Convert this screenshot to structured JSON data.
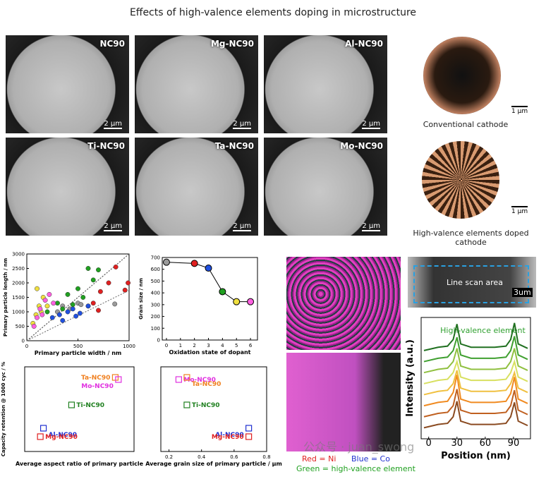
{
  "title": "Effects of high-valence elements doping in microstructure",
  "sem": [
    {
      "label": "NC90",
      "scale": "2 μm"
    },
    {
      "label": "Mg-NC90",
      "scale": "2 μm"
    },
    {
      "label": "Al-NC90",
      "scale": "2 μm"
    },
    {
      "label": "Ti-NC90",
      "scale": "2 μm"
    },
    {
      "label": "Ta-NC90",
      "scale": "2 μm"
    },
    {
      "label": "Mo-NC90",
      "scale": "2 μm"
    }
  ],
  "cathodes": [
    {
      "caption": "Conventional cathode",
      "scale": "1 μm"
    },
    {
      "caption": "High-valence elements doped cathode",
      "scale": "1 μm"
    }
  ],
  "eds": {
    "red": "Red = Ni",
    "blue": "Blue = Co",
    "green": "Green = high-valence element"
  },
  "line_scan": {
    "label": "Line scan area",
    "scale": "3um"
  },
  "watermark": "公众号 · juan_swong",
  "chart_data": [
    {
      "type": "scatter",
      "x_label": "Primary particle width / nm",
      "y_label": "Primary particle length / nm",
      "xlim": [
        0,
        1000
      ],
      "ylim": [
        0,
        3000
      ],
      "xticks": [
        0,
        500,
        1000
      ],
      "yticks": [
        0,
        500,
        1000,
        1500,
        2000,
        2500,
        3000
      ],
      "series": [
        {
          "color": "#9a9a9a",
          "x": [
            300,
            350,
            420,
            500,
            530,
            860
          ],
          "values": [
            1000,
            1200,
            1100,
            1300,
            1250,
            1270
          ]
        },
        {
          "color": "#e02020",
          "x": [
            650,
            720,
            800,
            870,
            960,
            990,
            700,
            600
          ],
          "values": [
            1300,
            1700,
            2000,
            2550,
            1750,
            2000,
            1050,
            1200
          ]
        },
        {
          "color": "#2050e0",
          "x": [
            250,
            320,
            400,
            450,
            520,
            600,
            350,
            480
          ],
          "values": [
            800,
            900,
            1000,
            1100,
            950,
            1200,
            700,
            850
          ]
        },
        {
          "color": "#20a020",
          "x": [
            200,
            300,
            400,
            500,
            600,
            700,
            450,
            550,
            650,
            350
          ],
          "values": [
            1000,
            1300,
            1600,
            1800,
            2500,
            2450,
            1250,
            1500,
            2100,
            1100
          ]
        },
        {
          "color": "#f0e040",
          "x": [
            60,
            90,
            120,
            160,
            200,
            100,
            140
          ],
          "values": [
            600,
            900,
            1200,
            1500,
            1200,
            1800,
            1000
          ]
        },
        {
          "color": "#ff60e0",
          "x": [
            70,
            100,
            130,
            180,
            220,
            260,
            150
          ],
          "values": [
            500,
            800,
            1100,
            1400,
            1600,
            1300,
            900
          ]
        }
      ]
    },
    {
      "type": "line",
      "x_label": "Oxidation state of dopant",
      "y_label": "Grain size / nm",
      "xlim": [
        -0.3,
        6.5
      ],
      "ylim": [
        0,
        700
      ],
      "xticks": [
        0,
        1,
        2,
        3,
        4,
        5,
        6
      ],
      "yticks": [
        0,
        100,
        200,
        300,
        400,
        500,
        600,
        700
      ],
      "x": [
        0,
        2,
        3,
        4,
        5,
        6
      ],
      "values": [
        660,
        650,
        610,
        410,
        325,
        325
      ],
      "colors": [
        "#9a9a9a",
        "#e02020",
        "#2050e0",
        "#20a020",
        "#f0e040",
        "#ff60e0"
      ]
    },
    {
      "type": "scatter",
      "x_label": "Average aspect ratio of primary particle",
      "y_label": "Capacity retention @ 1000 cyc / %",
      "xlim": [
        1,
        8
      ],
      "ylim": [
        60,
        100
      ],
      "categories": [
        "Ta-NC90",
        "Mo-NC90",
        "Ti-NC90",
        "Al-NC90",
        "Mg-NC90"
      ],
      "x": [
        6.8,
        7.0,
        4.0,
        2.2,
        2.0
      ],
      "values": [
        95,
        94,
        82,
        71,
        67
      ],
      "colors": [
        "#f08020",
        "#e030e0",
        "#208020",
        "#2030d0",
        "#e02020"
      ]
    },
    {
      "type": "scatter",
      "x_label": "Average grain size of primary particle / μm",
      "xlim": [
        0.15,
        0.8
      ],
      "ylim": [
        60,
        100
      ],
      "xticks": [
        0.2,
        0.4,
        0.6,
        0.8
      ],
      "categories": [
        "Mo-NC90",
        "Ta-NC90",
        "Ti-NC90",
        "Al-NC90",
        "Mg-NC90"
      ],
      "x": [
        0.26,
        0.31,
        0.31,
        0.69,
        0.69
      ],
      "values": [
        94,
        95,
        82,
        71,
        67
      ],
      "colors": [
        "#e030e0",
        "#f08020",
        "#208020",
        "#2030d0",
        "#e02020"
      ]
    },
    {
      "type": "line",
      "x_label": "Position (nm)",
      "y_label": "Intensity (a.u.)",
      "annotation": "High-valence element",
      "xlim": [
        -8,
        108
      ],
      "ylim": [
        0,
        11
      ],
      "xticks": [
        0,
        30,
        60,
        90
      ],
      "x": [
        -5,
        10,
        20,
        26,
        30,
        34,
        45,
        70,
        82,
        87,
        91,
        95,
        105
      ],
      "series": [
        {
          "color": "#8a4a20",
          "values": [
            1,
            1.3,
            1.4,
            2,
            3.4,
            1.6,
            1.3,
            1.3,
            1.4,
            2,
            3.3,
            1.6,
            1.2
          ]
        },
        {
          "color": "#c06020",
          "values": [
            2,
            2.3,
            2.4,
            3,
            4.5,
            2.6,
            2.3,
            2.3,
            2.4,
            3,
            4.4,
            2.6,
            2.2
          ]
        },
        {
          "color": "#f08a20",
          "values": [
            3,
            3.3,
            3.4,
            4.2,
            5.8,
            3.6,
            3.3,
            3.3,
            3.4,
            4.1,
            5.6,
            3.6,
            3.2
          ]
        },
        {
          "color": "#f0c040",
          "values": [
            4,
            4.3,
            4.4,
            5,
            6.2,
            4.6,
            4.3,
            4.3,
            4.4,
            5,
            6,
            4.6,
            4.2
          ]
        },
        {
          "color": "#d8e060",
          "values": [
            5,
            5.3,
            5.4,
            6,
            7,
            5.6,
            5.3,
            5.3,
            5.4,
            6,
            7,
            5.6,
            5.2
          ]
        },
        {
          "color": "#90c040",
          "values": [
            6,
            6.3,
            6.4,
            7,
            8.2,
            6.6,
            6.3,
            6.3,
            6.4,
            7,
            8.2,
            6.6,
            6.2
          ]
        },
        {
          "color": "#40a030",
          "values": [
            7,
            7.3,
            7.4,
            8,
            9.2,
            7.6,
            7.3,
            7.3,
            7.4,
            8,
            9.3,
            7.6,
            7.2
          ]
        },
        {
          "color": "#207020",
          "values": [
            8,
            8.3,
            8.4,
            9,
            10.4,
            8.6,
            8.3,
            8.3,
            8.4,
            9,
            10.5,
            8.6,
            8.2
          ]
        }
      ]
    }
  ]
}
